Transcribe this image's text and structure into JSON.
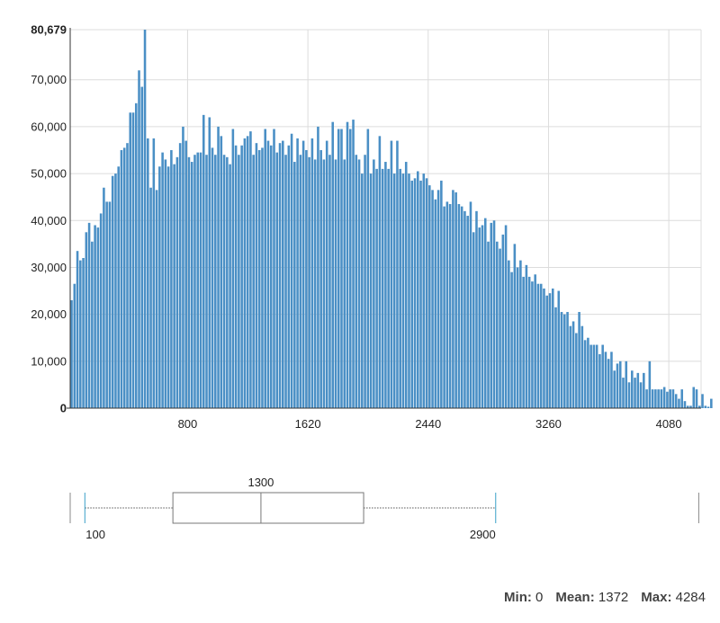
{
  "chart_data": {
    "type": "bar",
    "title": "",
    "xlabel": "",
    "ylabel": "",
    "bin_width": 20,
    "x_start": 0,
    "xlim": [
      0,
      4300
    ],
    "ylim": [
      0,
      80679
    ],
    "x_ticks": [
      800,
      1620,
      2440,
      3260,
      4080
    ],
    "y_ticks": [
      0,
      10000,
      20000,
      30000,
      40000,
      50000,
      60000,
      70000,
      80679
    ],
    "y_tick_labels": [
      "0",
      "10,000",
      "20,000",
      "30,000",
      "40,000",
      "50,000",
      "60,000",
      "70,000",
      "80,679"
    ],
    "grid": true,
    "bar_color": "#4a8fc5",
    "values": [
      23000,
      26500,
      33500,
      31500,
      32000,
      37500,
      39500,
      35500,
      39000,
      38500,
      41500,
      47000,
      44000,
      44000,
      49500,
      50000,
      51500,
      55000,
      55500,
      56500,
      63000,
      63000,
      65000,
      72000,
      68500,
      80679,
      57500,
      47000,
      57500,
      46500,
      51500,
      54500,
      53000,
      51500,
      55000,
      52000,
      53500,
      56500,
      60000,
      57000,
      53500,
      52500,
      54000,
      54500,
      54500,
      62500,
      54000,
      62000,
      55500,
      54000,
      60000,
      58000,
      54000,
      53500,
      52000,
      59500,
      56000,
      54000,
      56000,
      57500,
      58000,
      59000,
      54000,
      56500,
      55000,
      55500,
      59500,
      57000,
      56000,
      59500,
      54500,
      56500,
      57000,
      54000,
      56000,
      58500,
      52500,
      57500,
      54000,
      57000,
      55000,
      53500,
      57500,
      53000,
      60000,
      55000,
      53000,
      57000,
      54000,
      61000,
      53000,
      59500,
      59500,
      53000,
      61000,
      59500,
      61500,
      54000,
      53000,
      50000,
      54000,
      59500,
      50000,
      53000,
      51000,
      58000,
      51000,
      52500,
      51000,
      57000,
      50000,
      57000,
      51000,
      50000,
      52500,
      50000,
      48500,
      49000,
      50500,
      48500,
      50000,
      49000,
      47500,
      46500,
      44500,
      46500,
      48500,
      43000,
      44000,
      43500,
      46500,
      46000,
      43500,
      43000,
      42000,
      41000,
      44000,
      37500,
      42000,
      38500,
      39000,
      40500,
      35500,
      39500,
      40000,
      35500,
      34000,
      37000,
      39000,
      31500,
      29000,
      35000,
      30000,
      31500,
      28000,
      30500,
      28000,
      27000,
      28500,
      26500,
      26500,
      25500,
      24000,
      24500,
      25500,
      21500,
      25000,
      20500,
      20000,
      20500,
      17500,
      18500,
      16000,
      20500,
      17500,
      14500,
      15000,
      13500,
      13500,
      13500,
      11500,
      13500,
      12000,
      10500,
      12000,
      8000,
      9500,
      10000,
      6500,
      10000,
      5500,
      8000,
      6500,
      7500,
      5500,
      7500,
      4000,
      10000,
      4000,
      4000,
      4000,
      4000,
      4500,
      3500,
      4000,
      4000,
      3000,
      2000,
      4000,
      1500,
      500,
      500,
      4500,
      4000,
      500,
      3000,
      500,
      300,
      2000,
      0,
      0,
      0,
      4000,
      0,
      0,
      0,
      0,
      0,
      0,
      0,
      0,
      0,
      0,
      0,
      0,
      0,
      0,
      0,
      0,
      0,
      0,
      0,
      0,
      0,
      0,
      0,
      0,
      0,
      0,
      0,
      0,
      0,
      0,
      0,
      0,
      0,
      0,
      0,
      0,
      0,
      0,
      0,
      4800,
      0,
      0,
      0,
      0,
      0,
      0,
      0,
      0,
      0,
      0,
      0,
      0,
      0
    ]
  },
  "boxplot": {
    "min": 0,
    "whisker_low": 100,
    "q1": 700,
    "median": 1300,
    "q3": 2000,
    "whisker_high": 2900,
    "max": 4284,
    "label_median": "1300",
    "label_low": "100",
    "label_high": "2900",
    "whisker_color": "#3aa0c8"
  },
  "stats": {
    "min_label": "Min:",
    "min_value": "0",
    "mean_label": "Mean:",
    "mean_value": "1372",
    "max_label": "Max:",
    "max_value": "4284"
  }
}
